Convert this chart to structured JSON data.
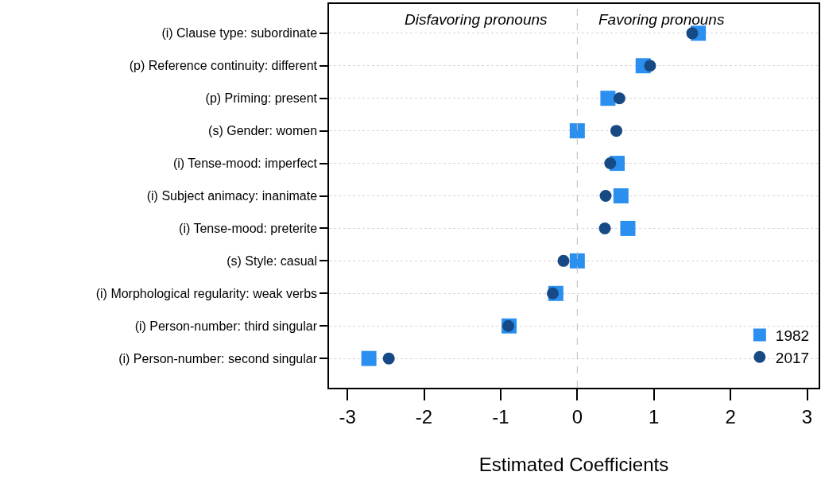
{
  "chart_data": {
    "type": "scatter",
    "xlabel": "Estimated Coefficients",
    "orientation": "horizontal",
    "categories": [
      "(i) Clause type: subordinate",
      "(p) Reference continuity: different",
      "(p) Priming: present",
      "(s) Gender: women",
      "(i) Tense-mood: imperfect",
      "(i) Subject animacy: inanimate",
      "(i) Tense-mood: preterite",
      "(s) Style: casual",
      "(i) Morphological regularity: weak verbs",
      "(i) Person-number: third singular",
      "(i) Person-number: second singular"
    ],
    "series": [
      {
        "name": "1982",
        "color": "#2b8ff0",
        "marker": "square",
        "values": [
          1.58,
          0.86,
          0.4,
          0.0,
          0.52,
          0.57,
          0.66,
          0.0,
          -0.28,
          -0.89,
          -2.72
        ]
      },
      {
        "name": "2017",
        "color": "#174a85",
        "marker": "circle",
        "values": [
          1.5,
          0.95,
          0.55,
          0.51,
          0.43,
          0.37,
          0.36,
          -0.18,
          -0.32,
          -0.9,
          -2.46
        ]
      }
    ],
    "xlim": [
      -3.24,
      3.15
    ],
    "xticks": [
      -3,
      -2,
      -1,
      0,
      1,
      2,
      3
    ],
    "ref_lines": [
      {
        "axis": "x",
        "value": 0,
        "color": "#bbbbbb",
        "line_style": "dashed"
      }
    ],
    "annotations": [
      "Disfavoring pronouns",
      "Favoring pronouns"
    ],
    "grid": "y",
    "legend": "bottom right"
  }
}
